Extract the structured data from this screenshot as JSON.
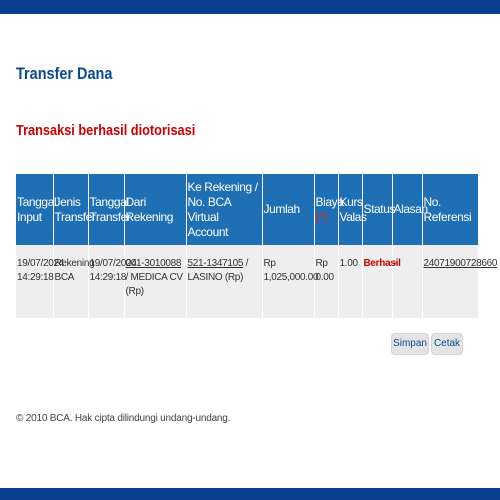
{
  "page": {
    "title": "Transfer Dana",
    "success_message": "Transaksi berhasil diotorisasi",
    "colors": {
      "header_bar": "#0a3f8f",
      "table_header": "#1f6fb5",
      "title": "#0b4a8f",
      "success": "#cc0000",
      "row_bg": "#eeeeee"
    }
  },
  "table": {
    "headers": {
      "tanggal_input": "Tanggal Input",
      "jenis_transfer": "Jenis Transfer",
      "tanggal_transfer": "Tanggal Transfer",
      "dari_rekening": "Dari Rekening",
      "ke_rekening": "Ke Rekening / No. BCA Virtual Account",
      "jumlah": "Jumlah",
      "biaya": "Biaya",
      "biaya_mark": "(*)",
      "kurs_valas": "Kurs Valas",
      "status": "Status",
      "alasan": "Alasan",
      "no_referensi": "No. Referensi"
    },
    "row": {
      "tanggal_input": "19/07/2024 14:29:18",
      "jenis_transfer": "Rekening BCA",
      "tanggal_transfer": "19/07/2024 14:29:18",
      "dari_rekening_no": "001-3010088",
      "dari_rekening_name": " / MEDICA CV (Rp)",
      "ke_rekening_no": "521-1347105",
      "ke_rekening_name": " / LASINO (Rp)",
      "jumlah": "Rp 1,025,000.00",
      "biaya": "Rp 0.00",
      "kurs_valas": "1.00",
      "status": "Berhasil",
      "alasan": "-",
      "no_referensi": "24071900728660"
    }
  },
  "actions": {
    "save_label": "Simpan",
    "print_label": "Cetak"
  },
  "footer": {
    "copyright": "© 2010 BCA. Hak cipta dilindungi undang-undang."
  }
}
